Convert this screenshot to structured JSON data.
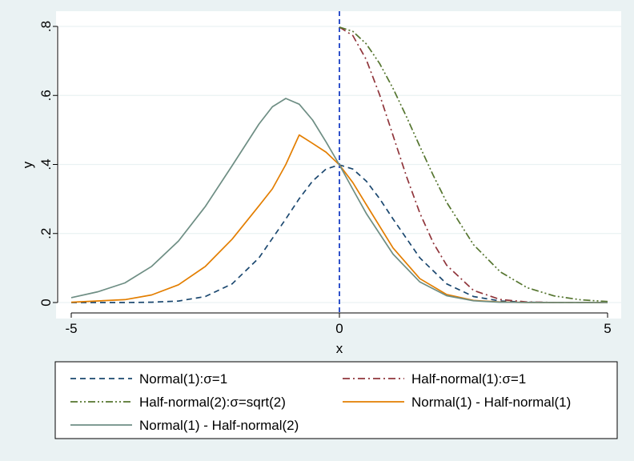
{
  "chart_data": {
    "type": "line",
    "xlabel": "x",
    "ylabel": "y",
    "xlim": [
      -5,
      5
    ],
    "ylim": [
      0,
      0.8
    ],
    "x_ticks": [
      {
        "value": -5,
        "label": "-5"
      },
      {
        "value": 0,
        "label": "0"
      },
      {
        "value": 5,
        "label": "5"
      }
    ],
    "y_ticks": [
      {
        "value": 0,
        "label": "0"
      },
      {
        "value": 0.2,
        "label": ".2"
      },
      {
        "value": 0.4,
        "label": ".4"
      },
      {
        "value": 0.6,
        "label": ".6"
      },
      {
        "value": 0.8,
        "label": ".8"
      }
    ],
    "grid": "horizontal",
    "reference_line": {
      "x": 0,
      "color": "#1a3fc4",
      "style": "dashed"
    },
    "legend_position": "bottom",
    "series": [
      {
        "name": "Normal(1):σ=1",
        "color": "#1a476f",
        "dash": "dash",
        "x": [
          -5,
          -4,
          -3.5,
          -3,
          -2.5,
          -2,
          -1.5,
          -1,
          -0.75,
          -0.5,
          -0.25,
          0,
          0.25,
          0.5,
          0.75,
          1,
          1.5,
          2,
          2.5,
          3,
          3.5,
          4,
          5
        ],
        "y": [
          0,
          0.0001,
          0.0009,
          0.0044,
          0.0175,
          0.054,
          0.1295,
          0.242,
          0.3011,
          0.3521,
          0.3867,
          0.3989,
          0.3867,
          0.3521,
          0.3011,
          0.242,
          0.1295,
          0.054,
          0.0175,
          0.0044,
          0.0009,
          0.0001,
          0
        ]
      },
      {
        "name": "Half-normal(1):σ=1",
        "color": "#90353b",
        "dash": "dashdot",
        "x": [
          0,
          0.25,
          0.5,
          0.75,
          1,
          1.25,
          1.5,
          1.75,
          2,
          2.5,
          3,
          3.5,
          4,
          5
        ],
        "y": [
          0.7979,
          0.7733,
          0.7041,
          0.6023,
          0.4839,
          0.3653,
          0.2591,
          0.1726,
          0.108,
          0.035,
          0.0089,
          0.0017,
          0.0003,
          0
        ]
      },
      {
        "name": "Half-normal(2):σ=sqrt(2)",
        "color": "#55752f",
        "dash": "dashdotdot",
        "x": [
          0,
          0.25,
          0.5,
          0.75,
          1,
          1.25,
          1.5,
          1.75,
          2,
          2.5,
          3,
          3.5,
          4,
          4.5,
          5
        ],
        "y": [
          0.7979,
          0.7856,
          0.7494,
          0.6927,
          0.6203,
          0.5383,
          0.4522,
          0.3681,
          0.2903,
          0.1677,
          0.0888,
          0.0432,
          0.0192,
          0.0078,
          0.0029
        ]
      },
      {
        "name": "Normal(1) - Half-normal(1)",
        "color": "#e37e00",
        "dash": "solid",
        "x": [
          -5,
          -4,
          -3.5,
          -3,
          -2.5,
          -2,
          -1.5,
          -1.25,
          -1,
          -0.75,
          -0.5,
          -0.25,
          0,
          0.25,
          0.5,
          1,
          1.5,
          2,
          2.5,
          3,
          3.5,
          4,
          5
        ],
        "y": [
          0.0009,
          0.0084,
          0.0221,
          0.0515,
          0.1045,
          0.1837,
          0.2802,
          0.3294,
          0.3997,
          0.4855,
          0.4609,
          0.4356,
          0.3989,
          0.3473,
          0.2841,
          0.1581,
          0.0692,
          0.0232,
          0.0062,
          0.0013,
          0.0002,
          0,
          0
        ]
      },
      {
        "name": "Normal(1) - Half-normal(2)",
        "color": "#6e8e84",
        "dash": "solid",
        "x": [
          -5,
          -4.5,
          -4,
          -3.5,
          -3,
          -2.5,
          -2,
          -1.5,
          -1.25,
          -1,
          -0.75,
          -0.5,
          -0.25,
          0,
          0.25,
          0.5,
          1,
          1.5,
          2,
          2.5,
          3,
          3.5,
          4,
          5
        ],
        "y": [
          0.0142,
          0.0312,
          0.0568,
          0.1047,
          0.1784,
          0.2782,
          0.3965,
          0.5171,
          0.5671,
          0.5912,
          0.5747,
          0.5288,
          0.4655,
          0.3989,
          0.3279,
          0.2583,
          0.1403,
          0.0597,
          0.0197,
          0.0051,
          0.001,
          0.0002,
          0,
          0
        ]
      }
    ]
  }
}
